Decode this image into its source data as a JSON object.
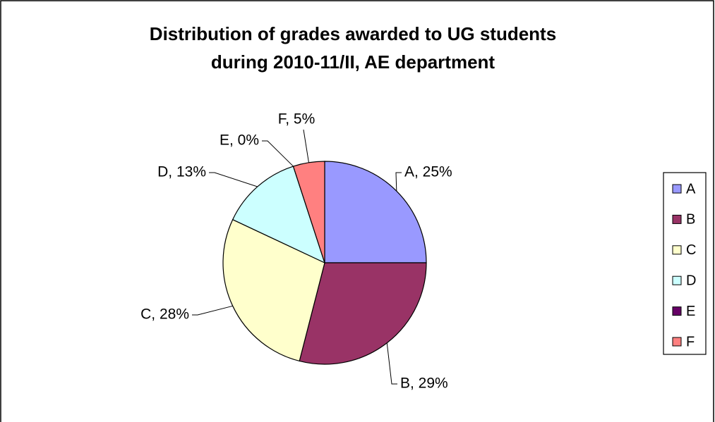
{
  "chart_data": {
    "type": "pie",
    "title": [
      "Distribution of grades awarded to UG students",
      "during 2010-11/II, AE department"
    ],
    "categories": [
      "A",
      "B",
      "C",
      "D",
      "E",
      "F"
    ],
    "values": [
      25,
      29,
      28,
      13,
      0,
      5
    ],
    "value_labels": [
      "A, 25%",
      "B, 29%",
      "C, 28%",
      "D, 13%",
      "E, 0%",
      "F, 5%"
    ],
    "colors": [
      "#9999ff",
      "#993366",
      "#ffffcc",
      "#ccffff",
      "#660066",
      "#ff8080"
    ],
    "legend": "right"
  }
}
